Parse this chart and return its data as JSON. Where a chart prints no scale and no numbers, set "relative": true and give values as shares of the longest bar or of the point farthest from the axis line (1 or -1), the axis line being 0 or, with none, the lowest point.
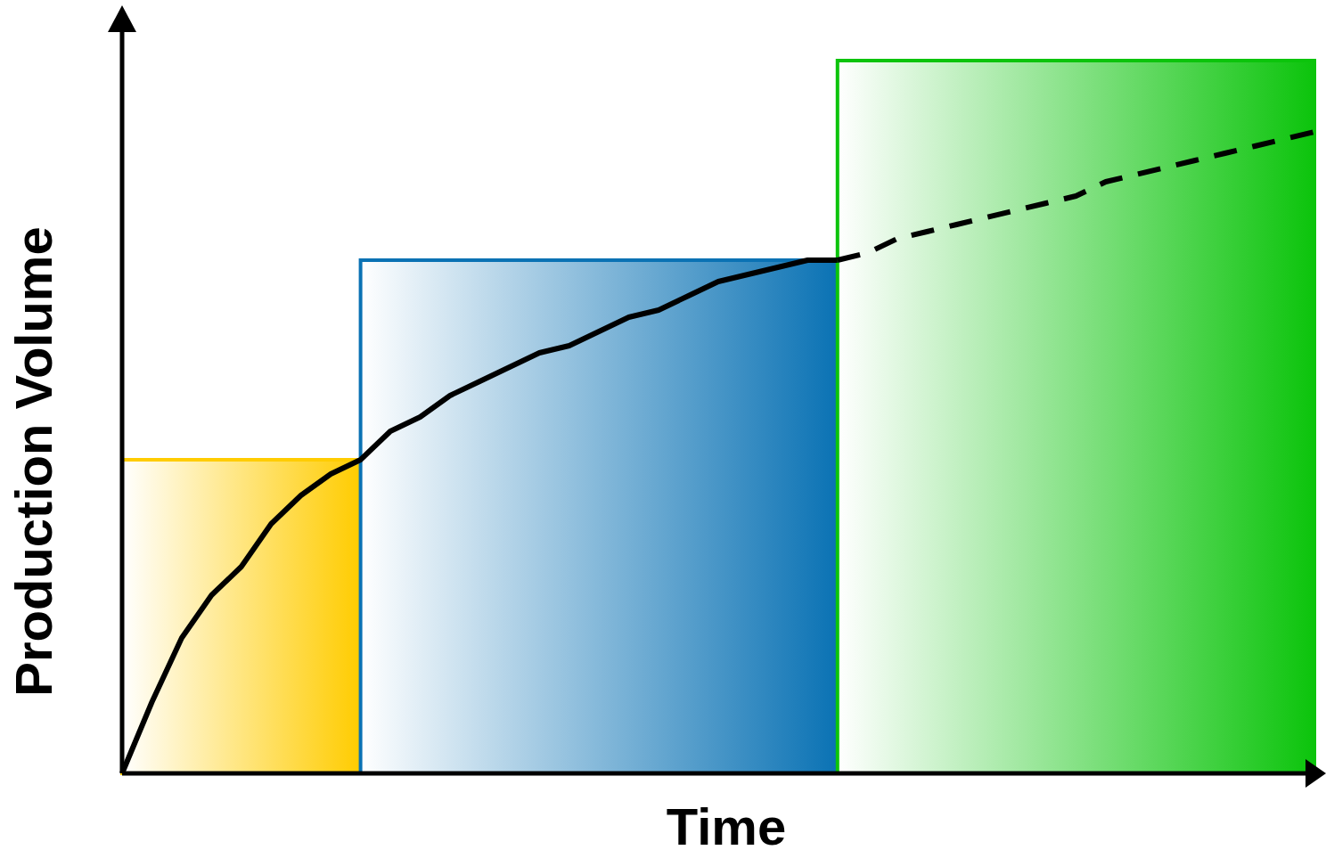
{
  "chart_data": {
    "type": "line",
    "xlabel": "Time",
    "ylabel": "Production Volume",
    "relative": true,
    "categories": [
      null,
      null,
      null,
      null,
      null,
      null,
      null,
      null,
      null,
      null,
      null,
      null,
      null,
      null,
      null,
      null,
      null,
      null,
      null,
      null,
      null,
      null,
      null,
      null,
      null,
      null,
      null,
      null,
      null,
      null,
      null,
      null,
      null,
      null,
      null,
      null,
      null,
      null,
      null,
      null,
      null
    ],
    "series": [
      {
        "type": "area",
        "color": "#ffcc00",
        "values": [
          0.44,
          0.44,
          0.44,
          0.44,
          0.44,
          0.44,
          0.44,
          0.44,
          0.44,
          null,
          null,
          null,
          null,
          null,
          null,
          null,
          null,
          null,
          null,
          null,
          null,
          null,
          null,
          null,
          null,
          null,
          null,
          null,
          null,
          null,
          null,
          null,
          null,
          null,
          null,
          null,
          null,
          null,
          null,
          null,
          null
        ]
      },
      {
        "type": "area",
        "color": "#0a72b4",
        "values": [
          null,
          null,
          null,
          null,
          null,
          null,
          null,
          null,
          0.72,
          0.72,
          0.72,
          0.72,
          0.72,
          0.72,
          0.72,
          0.72,
          0.72,
          0.72,
          0.72,
          0.72,
          0.72,
          0.72,
          0.72,
          0.72,
          0.72,
          null,
          null,
          null,
          null,
          null,
          null,
          null,
          null,
          null,
          null,
          null,
          null,
          null,
          null,
          null,
          null
        ]
      },
      {
        "type": "area",
        "color": "#0cc40c",
        "values": [
          null,
          null,
          null,
          null,
          null,
          null,
          null,
          null,
          null,
          null,
          null,
          null,
          null,
          null,
          null,
          null,
          null,
          null,
          null,
          null,
          null,
          null,
          null,
          null,
          1,
          1,
          1,
          1,
          1,
          1,
          1,
          1,
          1,
          1,
          1,
          1,
          1,
          1,
          1,
          1,
          1
        ]
      },
      {
        "color": "#000000",
        "line_style": "solid",
        "values": [
          0,
          0.1,
          0.19,
          0.25,
          0.29,
          0.35,
          0.39,
          0.42,
          0.44,
          0.48,
          0.5,
          0.53,
          0.55,
          0.57,
          0.59,
          0.6,
          0.62,
          0.64,
          0.65,
          0.67,
          0.69,
          0.7,
          0.71,
          0.72,
          0.72,
          null,
          null,
          null,
          null,
          null,
          null,
          null,
          null,
          null,
          null,
          null,
          null,
          null,
          null,
          null,
          null
        ]
      },
      {
        "color": "#000000",
        "line_style": "dashed",
        "values": [
          null,
          null,
          null,
          null,
          null,
          null,
          null,
          null,
          null,
          null,
          null,
          null,
          null,
          null,
          null,
          null,
          null,
          null,
          null,
          null,
          null,
          null,
          null,
          null,
          0.72,
          0.73,
          0.75,
          0.76,
          0.77,
          0.78,
          0.79,
          0.8,
          0.81,
          0.83,
          0.84,
          0.85,
          0.86,
          0.87,
          0.88,
          0.89,
          0.9
        ]
      }
    ]
  }
}
